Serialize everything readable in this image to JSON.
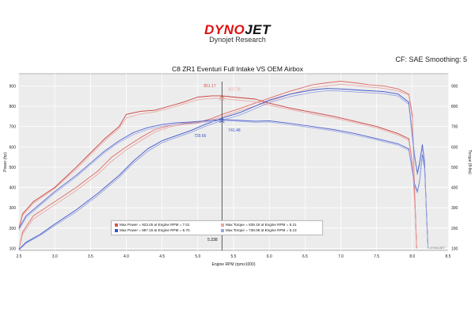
{
  "header": {
    "logo_part1": "DYNO",
    "logo_part2": "JET",
    "logo_subtitle": "Dynojet Research",
    "cf_text": "CF: SAE Smoothing: 5"
  },
  "colors": {
    "red": "#d9534f",
    "red_light": "#eba5a1",
    "blue": "#3b52c9",
    "blue_light": "#9aa6e2",
    "plot_bg": "#ececec"
  },
  "legend": [
    {
      "color": "#d9534f",
      "text": "Max Power = 923.45 at Engine RPM = 7.01"
    },
    {
      "color": "#eba5a1",
      "text": "Max Torque = 839.19 at Engine RPM = 5.21"
    },
    {
      "color": "#3b52c9",
      "text": "Max Power = 887.15 at Engine RPM = 6.70"
    },
    {
      "color": "#9aa6e2",
      "text": "Max Torque = 738.08 at Engine RPM = 5.13"
    }
  ],
  "chart_data": {
    "type": "line",
    "title": "C8 ZR1 Eventuri Full Intake VS OEM Airbox",
    "xlabel": "Engine RPM (rpmx1000)",
    "ylabel_left": "Power (hp)",
    "ylabel_right": "Torque (ft-lbs)",
    "xlim": [
      2.5,
      8.5
    ],
    "ylim": [
      90,
      960
    ],
    "xticks": [
      "2.5",
      "3.0",
      "3.5",
      "4.0",
      "4.5",
      "5.0",
      "5.5",
      "6.0",
      "6.5",
      "7.0",
      "7.5",
      "8.0",
      "8.5"
    ],
    "yticks": [
      "100",
      "200",
      "300",
      "400",
      "500",
      "600",
      "700",
      "800",
      "900"
    ],
    "grid": true,
    "cursor": {
      "x": 5.338,
      "label": "5.338"
    },
    "cursor_values": [
      {
        "value": "851.17",
        "series": "Eventuri Torque",
        "x": 5.338,
        "y": 851.17,
        "color": "#d9534f"
      },
      {
        "value": "837.78",
        "series": "OEM Torque",
        "x": 5.338,
        "y": 837.78,
        "color": "#eba5a1"
      },
      {
        "value": "729.66",
        "series": "OEM Power",
        "x": 5.338,
        "y": 729.66,
        "color": "#3b52c9"
      },
      {
        "value": "741.48",
        "series": "Eventuri Power",
        "x": 5.338,
        "y": 741.48,
        "color": "#3b52c9"
      }
    ],
    "watermark": "DYNOJET",
    "series": [
      {
        "color": "#e06a66",
        "width": 0.9,
        "x": [
          2.5,
          2.55,
          2.7,
          3.0,
          3.3,
          3.6,
          3.8,
          4.0,
          4.2,
          4.4,
          4.6,
          4.8,
          5.0,
          5.2,
          5.34,
          5.6,
          5.8,
          6.0,
          6.3,
          6.6,
          6.8,
          7.0,
          7.2,
          7.4,
          7.6,
          7.8,
          7.95,
          8.0,
          8.04,
          8.06
        ],
        "y": [
          95,
          180,
          260,
          330,
          400,
          480,
          550,
          600,
          645,
          685,
          705,
          715,
          720,
          740,
          760,
          790,
          815,
          840,
          875,
          905,
          915,
          923,
          915,
          905,
          900,
          885,
          860,
          760,
          300,
          100
        ]
      },
      {
        "color": "#e8a19d",
        "width": 0.8,
        "x": [
          2.5,
          2.55,
          2.7,
          3.0,
          3.3,
          3.6,
          3.8,
          4.0,
          4.2,
          4.4,
          4.6,
          4.8,
          5.0,
          5.2,
          5.34,
          5.6,
          5.8,
          6.0,
          6.3,
          6.6,
          6.8,
          7.0,
          7.2,
          7.4,
          7.6,
          7.8,
          7.95,
          8.0,
          8.04,
          8.06
        ],
        "y": [
          92,
          170,
          245,
          315,
          385,
          465,
          530,
          585,
          630,
          672,
          698,
          710,
          716,
          732,
          748,
          780,
          800,
          825,
          860,
          890,
          900,
          908,
          902,
          895,
          888,
          875,
          855,
          740,
          280,
          100
        ]
      },
      {
        "color": "#c9403c",
        "width": 0.9,
        "x": [
          2.5,
          2.55,
          2.7,
          3.0,
          3.3,
          3.5,
          3.7,
          3.9,
          4.0,
          4.2,
          4.4,
          4.6,
          4.8,
          5.0,
          5.2,
          5.34,
          5.5,
          5.8,
          6.0,
          6.3,
          6.6,
          6.9,
          7.2,
          7.5,
          7.8,
          7.95,
          8.0,
          8.04,
          8.06
        ],
        "y": [
          200,
          270,
          330,
          400,
          500,
          570,
          640,
          700,
          760,
          775,
          780,
          800,
          820,
          845,
          851,
          851,
          845,
          835,
          815,
          790,
          770,
          750,
          725,
          700,
          665,
          640,
          520,
          300,
          100
        ]
      },
      {
        "color": "#eba5a1",
        "width": 0.8,
        "x": [
          2.5,
          2.55,
          2.7,
          3.0,
          3.3,
          3.5,
          3.7,
          3.9,
          4.0,
          4.2,
          4.4,
          4.6,
          4.8,
          5.0,
          5.2,
          5.34,
          5.5,
          5.8,
          6.0,
          6.3,
          6.6,
          6.9,
          7.2,
          7.5,
          7.8,
          7.95,
          8.0,
          8.04,
          8.06
        ],
        "y": [
          190,
          262,
          322,
          395,
          490,
          560,
          630,
          690,
          742,
          762,
          772,
          790,
          810,
          832,
          839,
          838,
          832,
          822,
          805,
          783,
          762,
          742,
          718,
          693,
          658,
          632,
          510,
          290,
          100
        ]
      },
      {
        "color": "#3b52c9",
        "width": 0.9,
        "x": [
          2.5,
          2.6,
          2.8,
          3.0,
          3.3,
          3.6,
          3.9,
          4.1,
          4.3,
          4.5,
          4.7,
          4.9,
          5.1,
          5.34,
          5.6,
          5.8,
          6.0,
          6.3,
          6.6,
          6.8,
          7.0,
          7.3,
          7.6,
          7.8,
          7.95,
          8.03,
          8.07,
          8.1,
          8.14,
          8.17,
          8.2,
          8.22
        ],
        "y": [
          95,
          130,
          170,
          220,
          290,
          370,
          460,
          530,
          590,
          630,
          655,
          680,
          710,
          741,
          770,
          800,
          830,
          860,
          880,
          887,
          885,
          878,
          872,
          860,
          820,
          560,
          470,
          520,
          610,
          530,
          250,
          100
        ]
      },
      {
        "color": "#8d9be0",
        "width": 0.8,
        "x": [
          2.5,
          2.6,
          2.8,
          3.0,
          3.3,
          3.6,
          3.9,
          4.1,
          4.3,
          4.5,
          4.7,
          4.9,
          5.1,
          5.34,
          5.6,
          5.8,
          6.0,
          6.3,
          6.6,
          6.8,
          7.0,
          7.3,
          7.6,
          7.8,
          7.95,
          8.03,
          8.07,
          8.1,
          8.14,
          8.17,
          8.2,
          8.22
        ],
        "y": [
          92,
          125,
          165,
          212,
          280,
          360,
          450,
          520,
          578,
          620,
          646,
          670,
          700,
          730,
          758,
          788,
          818,
          848,
          868,
          876,
          875,
          868,
          862,
          850,
          810,
          550,
          462,
          508,
          598,
          520,
          240,
          100
        ]
      },
      {
        "color": "#5466cf",
        "width": 0.9,
        "x": [
          2.5,
          2.6,
          2.8,
          3.0,
          3.3,
          3.5,
          3.7,
          3.9,
          4.1,
          4.3,
          4.5,
          4.7,
          4.9,
          5.1,
          5.34,
          5.6,
          5.8,
          6.0,
          6.3,
          6.6,
          6.9,
          7.2,
          7.5,
          7.8,
          7.95,
          8.03,
          8.07,
          8.1,
          8.14,
          8.17,
          8.2,
          8.22
        ],
        "y": [
          200,
          260,
          320,
          380,
          460,
          520,
          580,
          630,
          670,
          695,
          710,
          718,
          722,
          728,
          735,
          730,
          726,
          728,
          715,
          700,
          685,
          665,
          640,
          615,
          590,
          420,
          380,
          430,
          560,
          500,
          260,
          100
        ]
      },
      {
        "color": "#a3aee4",
        "width": 0.8,
        "x": [
          2.5,
          2.6,
          2.8,
          3.0,
          3.3,
          3.5,
          3.7,
          3.9,
          4.1,
          4.3,
          4.5,
          4.7,
          4.9,
          5.1,
          5.34,
          5.6,
          5.8,
          6.0,
          6.3,
          6.6,
          6.9,
          7.2,
          7.5,
          7.8,
          7.95,
          8.03,
          8.07,
          8.1,
          8.14,
          8.17,
          8.2,
          8.22
        ],
        "y": [
          192,
          252,
          312,
          372,
          452,
          512,
          572,
          622,
          660,
          686,
          702,
          710,
          715,
          722,
          729,
          725,
          720,
          722,
          708,
          694,
          678,
          658,
          634,
          608,
          582,
          412,
          372,
          422,
          550,
          492,
          250,
          100
        ]
      }
    ]
  }
}
